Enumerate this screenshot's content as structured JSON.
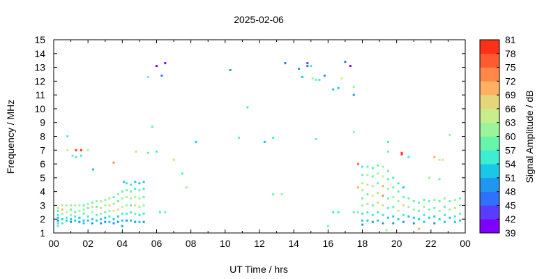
{
  "chart_data": {
    "type": "heatmap",
    "title": "2025-02-06",
    "xlabel": "UT Time / hrs",
    "ylabel": "Frequency / MHz",
    "xlim": [
      0,
      24
    ],
    "ylim": [
      1,
      15
    ],
    "x_ticks": [
      "00",
      "02",
      "04",
      "06",
      "08",
      "10",
      "12",
      "14",
      "16",
      "18",
      "20",
      "22",
      "00"
    ],
    "y_ticks": [
      1,
      2,
      3,
      4,
      5,
      6,
      7,
      8,
      9,
      10,
      11,
      12,
      13,
      14,
      15
    ],
    "colorbar": {
      "label": "Signal Amplitude / dB",
      "ticks": [
        39,
        42,
        45,
        48,
        51,
        54,
        57,
        60,
        63,
        66,
        69,
        72,
        75,
        78,
        81
      ],
      "colors": [
        "#7f00ff",
        "#5a3cff",
        "#3070ff",
        "#1f96f0",
        "#19c8e6",
        "#3deed0",
        "#66f5aa",
        "#9af59a",
        "#c8ee8c",
        "#e6d67a",
        "#ffb060",
        "#ff8848",
        "#ff5a30",
        "#ff3018"
      ]
    },
    "points": [
      [
        0.25,
        2.8,
        60
      ],
      [
        0.25,
        2.6,
        58
      ],
      [
        0.25,
        2.3,
        55
      ],
      [
        0.25,
        2.1,
        51
      ],
      [
        0.25,
        1.9,
        49
      ],
      [
        0.25,
        1.7,
        55
      ],
      [
        0.25,
        1.5,
        57
      ],
      [
        0.5,
        3.0,
        63
      ],
      [
        0.5,
        2.7,
        70
      ],
      [
        0.5,
        2.4,
        60
      ],
      [
        0.5,
        2.0,
        51
      ],
      [
        0.5,
        1.7,
        54
      ],
      [
        0.75,
        3.0,
        60
      ],
      [
        0.75,
        2.5,
        63
      ],
      [
        0.75,
        2.1,
        55
      ],
      [
        0.75,
        1.9,
        51
      ],
      [
        1.0,
        3.0,
        60
      ],
      [
        1.0,
        2.7,
        58
      ],
      [
        1.0,
        2.3,
        60
      ],
      [
        1.0,
        2.0,
        52
      ],
      [
        1.0,
        1.8,
        50
      ],
      [
        1.25,
        3.0,
        62
      ],
      [
        1.25,
        2.5,
        58
      ],
      [
        1.25,
        2.2,
        55
      ],
      [
        1.25,
        1.9,
        51
      ],
      [
        1.5,
        3.0,
        60
      ],
      [
        1.5,
        2.6,
        60
      ],
      [
        1.5,
        2.1,
        51
      ],
      [
        1.5,
        1.8,
        49
      ],
      [
        1.75,
        3.0,
        58
      ],
      [
        1.75,
        2.7,
        60
      ],
      [
        1.75,
        2.4,
        57
      ],
      [
        1.75,
        1.9,
        52
      ],
      [
        1.75,
        1.7,
        51
      ],
      [
        2.0,
        3.1,
        60
      ],
      [
        2.0,
        2.8,
        58
      ],
      [
        2.0,
        2.2,
        55
      ],
      [
        2.0,
        1.9,
        51
      ],
      [
        2.25,
        3.2,
        58
      ],
      [
        2.25,
        2.9,
        66
      ],
      [
        2.25,
        2.5,
        60
      ],
      [
        2.25,
        2.0,
        51
      ],
      [
        2.25,
        1.7,
        49
      ],
      [
        2.5,
        3.3,
        60
      ],
      [
        2.5,
        2.9,
        58
      ],
      [
        2.5,
        2.3,
        57
      ],
      [
        2.5,
        1.9,
        52
      ],
      [
        2.75,
        3.3,
        60
      ],
      [
        2.75,
        2.8,
        66
      ],
      [
        2.75,
        2.4,
        60
      ],
      [
        2.75,
        2.0,
        51
      ],
      [
        2.75,
        1.7,
        50
      ],
      [
        3.0,
        3.4,
        62
      ],
      [
        3.0,
        3.0,
        60
      ],
      [
        3.0,
        2.5,
        57
      ],
      [
        3.0,
        2.1,
        51
      ],
      [
        3.0,
        1.8,
        49
      ],
      [
        3.25,
        3.5,
        60
      ],
      [
        3.25,
        3.0,
        66
      ],
      [
        3.25,
        2.6,
        60
      ],
      [
        3.25,
        2.2,
        55
      ],
      [
        3.25,
        1.8,
        51
      ],
      [
        3.5,
        3.6,
        58
      ],
      [
        3.5,
        3.1,
        60
      ],
      [
        3.5,
        2.6,
        63
      ],
      [
        3.5,
        2.0,
        51
      ],
      [
        3.5,
        1.7,
        49
      ],
      [
        3.75,
        3.8,
        60
      ],
      [
        3.75,
        3.3,
        58
      ],
      [
        3.75,
        2.7,
        66
      ],
      [
        3.75,
        2.2,
        52
      ],
      [
        3.75,
        1.8,
        50
      ],
      [
        4.0,
        4.0,
        57
      ],
      [
        4.0,
        3.5,
        60
      ],
      [
        4.0,
        2.9,
        63
      ],
      [
        4.0,
        2.4,
        55
      ],
      [
        4.0,
        1.9,
        51
      ],
      [
        4.0,
        1.5,
        49
      ],
      [
        4.1,
        4.7,
        52
      ],
      [
        4.25,
        4.6,
        55
      ],
      [
        4.25,
        4.1,
        58
      ],
      [
        4.25,
        3.6,
        60
      ],
      [
        4.25,
        3.0,
        62
      ],
      [
        4.25,
        2.4,
        55
      ],
      [
        4.25,
        1.9,
        50
      ],
      [
        4.5,
        4.5,
        54
      ],
      [
        4.5,
        4.0,
        57
      ],
      [
        4.5,
        3.5,
        60
      ],
      [
        4.5,
        3.0,
        58
      ],
      [
        4.5,
        2.5,
        56
      ],
      [
        4.5,
        1.9,
        51
      ],
      [
        4.75,
        4.7,
        51
      ],
      [
        4.75,
        4.2,
        55
      ],
      [
        4.75,
        3.6,
        60
      ],
      [
        4.75,
        3.0,
        66
      ],
      [
        4.75,
        2.4,
        57
      ],
      [
        4.75,
        1.8,
        50
      ],
      [
        5.0,
        4.6,
        52
      ],
      [
        5.0,
        4.1,
        57
      ],
      [
        5.0,
        3.5,
        60
      ],
      [
        5.0,
        2.9,
        62
      ],
      [
        5.0,
        2.3,
        55
      ],
      [
        5.0,
        1.8,
        51
      ],
      [
        5.25,
        4.7,
        51
      ],
      [
        5.25,
        4.2,
        55
      ],
      [
        5.25,
        3.6,
        58
      ],
      [
        5.25,
        3.0,
        60
      ],
      [
        5.25,
        2.4,
        55
      ],
      [
        5.25,
        1.8,
        50
      ],
      [
        0.8,
        8.0,
        54
      ],
      [
        0.8,
        7.0,
        63
      ],
      [
        1.1,
        6.6,
        57
      ],
      [
        1.3,
        6.5,
        54
      ],
      [
        1.3,
        7.0,
        78
      ],
      [
        1.6,
        7.0,
        81
      ],
      [
        1.6,
        6.6,
        55
      ],
      [
        2.0,
        7.0,
        63
      ],
      [
        2.3,
        5.6,
        52
      ],
      [
        3.5,
        6.1,
        72
      ],
      [
        4.8,
        6.9,
        66
      ],
      [
        5.5,
        6.8,
        57
      ],
      [
        5.5,
        12.3,
        57
      ],
      [
        5.75,
        8.7,
        58
      ],
      [
        6.0,
        6.9,
        54
      ],
      [
        6.0,
        13.1,
        39
      ],
      [
        6.3,
        12.4,
        45
      ],
      [
        6.5,
        13.3,
        39
      ],
      [
        6.2,
        2.5,
        55
      ],
      [
        6.5,
        2.5,
        57
      ],
      [
        7.0,
        6.3,
        66
      ],
      [
        7.5,
        5.3,
        54
      ],
      [
        7.75,
        4.3,
        62
      ],
      [
        8.3,
        7.6,
        51
      ],
      [
        10.3,
        12.8,
        49
      ],
      [
        10.8,
        7.9,
        58
      ],
      [
        11.3,
        10.1,
        54
      ],
      [
        12.3,
        7.6,
        51
      ],
      [
        12.8,
        7.9,
        54
      ],
      [
        12.8,
        3.8,
        57
      ],
      [
        13.3,
        3.8,
        60
      ],
      [
        13.5,
        13.3,
        45
      ],
      [
        14.3,
        12.9,
        48
      ],
      [
        14.5,
        12.3,
        51
      ],
      [
        14.8,
        13.3,
        42
      ],
      [
        14.8,
        13.1,
        45
      ],
      [
        15.0,
        13.1,
        54
      ],
      [
        15.1,
        12.2,
        60
      ],
      [
        15.3,
        12.1,
        57
      ],
      [
        15.5,
        12.1,
        55
      ],
      [
        15.3,
        7.8,
        58
      ],
      [
        15.8,
        12.4,
        48
      ],
      [
        16.0,
        1.5,
        57
      ],
      [
        16.3,
        11.4,
        51
      ],
      [
        16.3,
        2.5,
        55
      ],
      [
        16.6,
        11.5,
        51
      ],
      [
        16.6,
        2.5,
        54
      ],
      [
        16.8,
        12.2,
        63
      ],
      [
        17.0,
        13.4,
        45
      ],
      [
        17.3,
        13.1,
        39
      ],
      [
        17.5,
        11.0,
        48
      ],
      [
        17.5,
        11.6,
        60
      ],
      [
        17.5,
        8.3,
        60
      ],
      [
        17.5,
        2.5,
        57
      ],
      [
        17.75,
        6.0,
        75
      ],
      [
        17.75,
        4.3,
        69
      ],
      [
        17.75,
        2.5,
        60
      ],
      [
        18.0,
        5.8,
        55
      ],
      [
        18.0,
        5.2,
        58
      ],
      [
        18.0,
        4.6,
        60
      ],
      [
        18.0,
        4.1,
        62
      ],
      [
        18.0,
        3.5,
        57
      ],
      [
        18.0,
        3.0,
        60
      ],
      [
        18.0,
        2.4,
        55
      ],
      [
        18.0,
        1.9,
        51
      ],
      [
        18.0,
        1.6,
        50
      ],
      [
        18.3,
        5.8,
        58
      ],
      [
        18.3,
        5.2,
        60
      ],
      [
        18.3,
        4.5,
        66
      ],
      [
        18.3,
        3.8,
        57
      ],
      [
        18.3,
        3.1,
        60
      ],
      [
        18.3,
        2.5,
        55
      ],
      [
        18.3,
        1.9,
        51
      ],
      [
        18.6,
        5.7,
        55
      ],
      [
        18.6,
        5.1,
        57
      ],
      [
        18.6,
        4.4,
        60
      ],
      [
        18.6,
        3.7,
        63
      ],
      [
        18.6,
        3.0,
        58
      ],
      [
        18.6,
        2.3,
        54
      ],
      [
        18.6,
        1.8,
        50
      ],
      [
        18.9,
        5.9,
        57
      ],
      [
        18.9,
        5.3,
        60
      ],
      [
        18.9,
        4.6,
        58
      ],
      [
        18.9,
        3.9,
        60
      ],
      [
        18.9,
        3.2,
        66
      ],
      [
        18.9,
        2.5,
        55
      ],
      [
        18.9,
        1.9,
        51
      ],
      [
        19.2,
        5.8,
        60
      ],
      [
        19.2,
        5.1,
        63
      ],
      [
        19.2,
        4.4,
        69
      ],
      [
        19.2,
        3.7,
        72
      ],
      [
        19.2,
        3.0,
        66
      ],
      [
        19.2,
        2.3,
        55
      ],
      [
        19.2,
        1.7,
        50
      ],
      [
        19.5,
        5.5,
        58
      ],
      [
        19.5,
        4.9,
        57
      ],
      [
        19.5,
        4.2,
        60
      ],
      [
        19.5,
        3.5,
        58
      ],
      [
        19.5,
        2.8,
        57
      ],
      [
        19.5,
        2.1,
        52
      ],
      [
        19.4,
        1.2,
        60
      ],
      [
        19.5,
        7.6,
        55
      ],
      [
        19.5,
        6.9,
        58
      ],
      [
        19.8,
        5.0,
        55
      ],
      [
        19.8,
        4.3,
        57
      ],
      [
        19.8,
        3.6,
        60
      ],
      [
        19.8,
        2.9,
        57
      ],
      [
        19.8,
        2.2,
        51
      ],
      [
        19.8,
        1.7,
        49
      ],
      [
        20.1,
        4.6,
        54
      ],
      [
        20.1,
        4.0,
        57
      ],
      [
        20.1,
        3.3,
        60
      ],
      [
        20.1,
        2.6,
        63
      ],
      [
        20.1,
        2.0,
        51
      ],
      [
        20.3,
        6.8,
        78
      ],
      [
        20.3,
        6.7,
        81
      ],
      [
        20.4,
        4.3,
        52
      ],
      [
        20.4,
        3.6,
        58
      ],
      [
        20.4,
        3.0,
        66
      ],
      [
        20.4,
        2.3,
        55
      ],
      [
        20.4,
        1.8,
        50
      ],
      [
        20.7,
        3.5,
        57
      ],
      [
        20.7,
        2.9,
        60
      ],
      [
        20.7,
        2.2,
        52
      ],
      [
        20.7,
        6.5,
        54
      ],
      [
        21.0,
        3.3,
        57
      ],
      [
        21.0,
        2.7,
        60
      ],
      [
        21.0,
        2.1,
        51
      ],
      [
        21.0,
        1.7,
        50
      ],
      [
        21.3,
        3.2,
        58
      ],
      [
        21.3,
        2.6,
        57
      ],
      [
        21.3,
        2.0,
        52
      ],
      [
        21.3,
        1.3,
        69
      ],
      [
        21.6,
        3.4,
        57
      ],
      [
        21.6,
        2.9,
        60
      ],
      [
        21.6,
        2.3,
        55
      ],
      [
        21.6,
        1.8,
        51
      ],
      [
        21.9,
        5.0,
        62
      ],
      [
        21.9,
        3.3,
        58
      ],
      [
        21.9,
        2.7,
        57
      ],
      [
        21.9,
        2.1,
        51
      ],
      [
        22.2,
        6.5,
        69
      ],
      [
        22.2,
        3.4,
        60
      ],
      [
        22.2,
        2.8,
        58
      ],
      [
        22.2,
        2.2,
        52
      ],
      [
        22.2,
        1.7,
        50
      ],
      [
        22.5,
        6.3,
        63
      ],
      [
        22.5,
        4.9,
        57
      ],
      [
        22.5,
        3.3,
        57
      ],
      [
        22.5,
        2.6,
        60
      ],
      [
        22.5,
        2.0,
        51
      ],
      [
        22.7,
        6.3,
        63
      ],
      [
        22.8,
        3.5,
        60
      ],
      [
        22.8,
        2.9,
        57
      ],
      [
        22.8,
        2.3,
        55
      ],
      [
        22.8,
        1.8,
        51
      ],
      [
        23.1,
        8.1,
        60
      ],
      [
        23.1,
        3.3,
        58
      ],
      [
        23.1,
        2.7,
        60
      ],
      [
        23.1,
        2.1,
        52
      ],
      [
        23.4,
        3.4,
        60
      ],
      [
        23.4,
        2.8,
        66
      ],
      [
        23.4,
        2.2,
        55
      ],
      [
        23.4,
        1.8,
        51
      ],
      [
        23.7,
        3.5,
        58
      ],
      [
        23.7,
        3.0,
        60
      ],
      [
        23.7,
        2.4,
        57
      ],
      [
        23.7,
        1.9,
        51
      ]
    ]
  }
}
